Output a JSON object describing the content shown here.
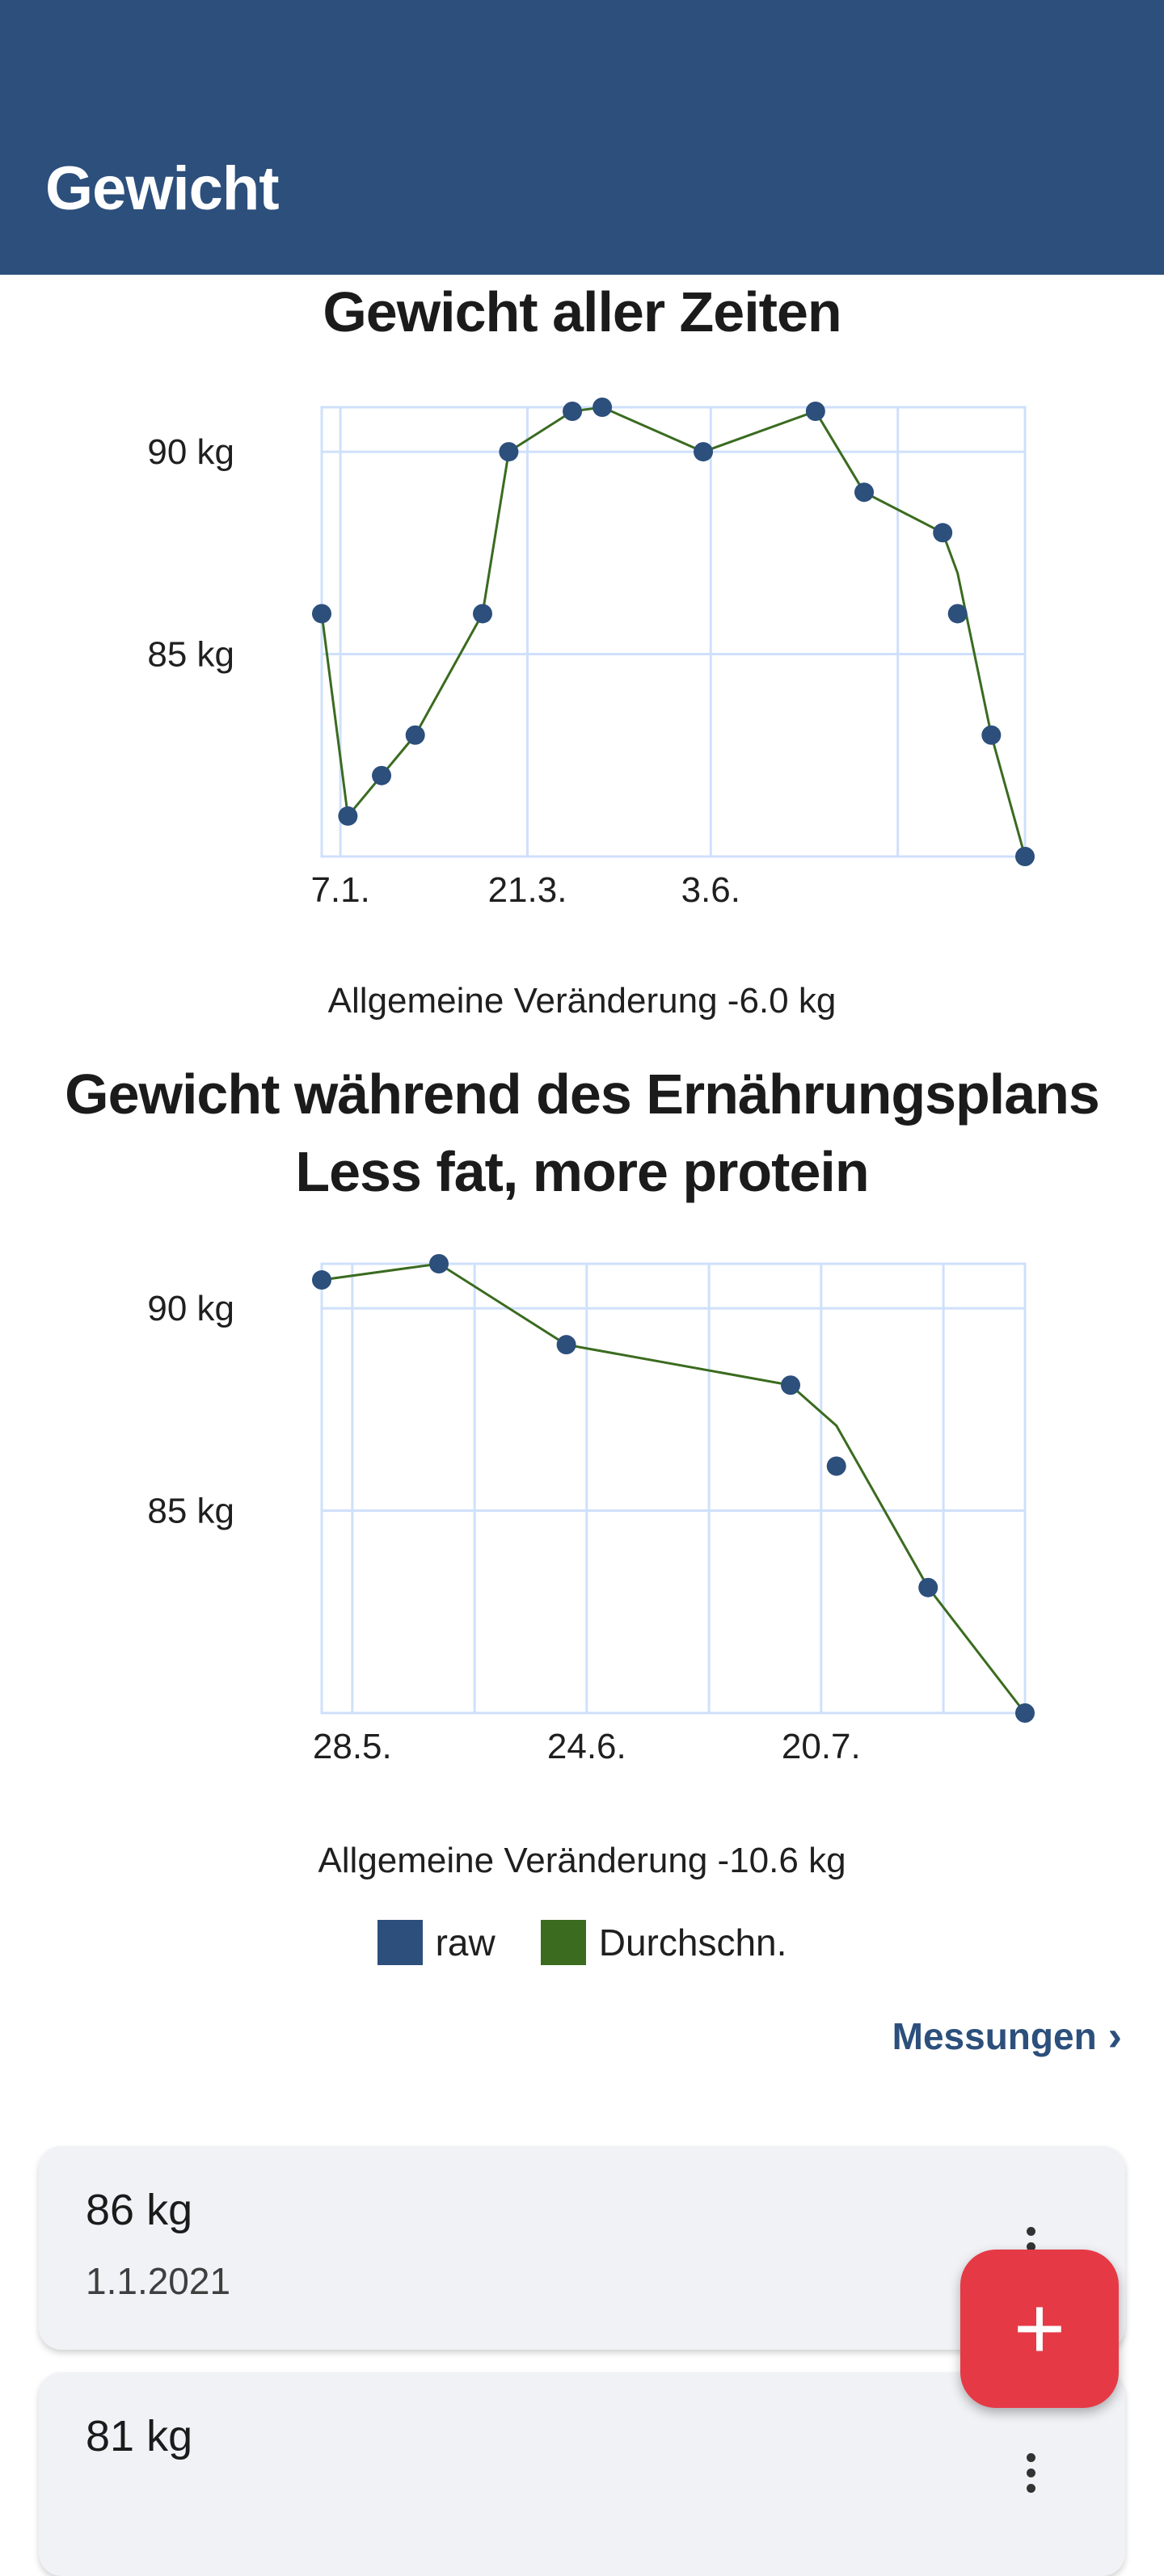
{
  "app_bar": {
    "title": "Gewicht"
  },
  "chart_all": {
    "heading": "Gewicht aller Zeiten",
    "summary": "Allgemeine Veränderung -6.0 kg"
  },
  "chart_plan": {
    "heading": "Gewicht während des Ernährungsplans Less fat, more protein",
    "summary": "Allgemeine Veränderung -10.6 kg"
  },
  "legend": {
    "raw": "raw",
    "avg": "Durchschn."
  },
  "measurements_link": {
    "label": "Messungen",
    "icon": "chevron-right-icon"
  },
  "entries": [
    {
      "value": "86 kg",
      "date": "1.1.2021"
    },
    {
      "value": "81 kg",
      "date": ""
    }
  ],
  "fab": {
    "icon": "plus-icon",
    "label": "+"
  },
  "colors": {
    "primary": "#2c4f7c",
    "average": "#3a6b1f",
    "fab": "#e63946"
  },
  "chart_data": [
    {
      "type": "line",
      "title": "Gewicht aller Zeiten",
      "y_tick_labels": [
        "85 kg",
        "90 kg"
      ],
      "x_tick_labels": [
        "7.1.",
        "21.3.",
        "3.6."
      ],
      "y_ticks": [
        85,
        90
      ],
      "ylim": [
        80,
        91.1
      ],
      "xlim": [
        0,
        188
      ],
      "x_ticks": [
        5,
        55,
        104
      ],
      "grid": true,
      "series": [
        {
          "name": "raw",
          "x": [
            0,
            7,
            16,
            25,
            43,
            50,
            67,
            75,
            102,
            132,
            145,
            166,
            170,
            179,
            188
          ],
          "y": [
            86,
            81,
            82,
            83,
            86,
            90,
            91,
            91.1,
            90,
            91,
            89,
            88,
            86,
            83,
            80
          ]
        },
        {
          "name": "Durchschn.",
          "x": [
            0,
            7,
            16,
            25,
            43,
            50,
            67,
            75,
            102,
            132,
            145,
            166,
            170,
            179,
            188
          ],
          "y": [
            86,
            81,
            82,
            83,
            86,
            90,
            91,
            91.1,
            90,
            91,
            89,
            88,
            87,
            83,
            80
          ]
        }
      ]
    },
    {
      "type": "line",
      "title": "Gewicht während des Ernährungsplans Less fat, more protein",
      "y_tick_labels": [
        "85 kg",
        "90 kg"
      ],
      "x_tick_labels": [
        "28.5.",
        "24.6.",
        "20.7."
      ],
      "y_ticks": [
        85,
        90
      ],
      "ylim": [
        80,
        91.1
      ],
      "xlim": [
        0,
        69
      ],
      "x_ticks": [
        3,
        26,
        49
      ],
      "grid": true,
      "series": [
        {
          "name": "raw",
          "x": [
            0,
            11.5,
            24,
            46,
            50.5,
            59.5,
            69
          ],
          "y": [
            90.7,
            91.1,
            89.1,
            88.1,
            86.1,
            83.1,
            80
          ]
        },
        {
          "name": "Durchschn.",
          "x": [
            0,
            11.5,
            24,
            46,
            50.5,
            59.5,
            69
          ],
          "y": [
            90.7,
            91.1,
            89.1,
            88.1,
            87.1,
            83.1,
            80
          ]
        }
      ]
    }
  ]
}
